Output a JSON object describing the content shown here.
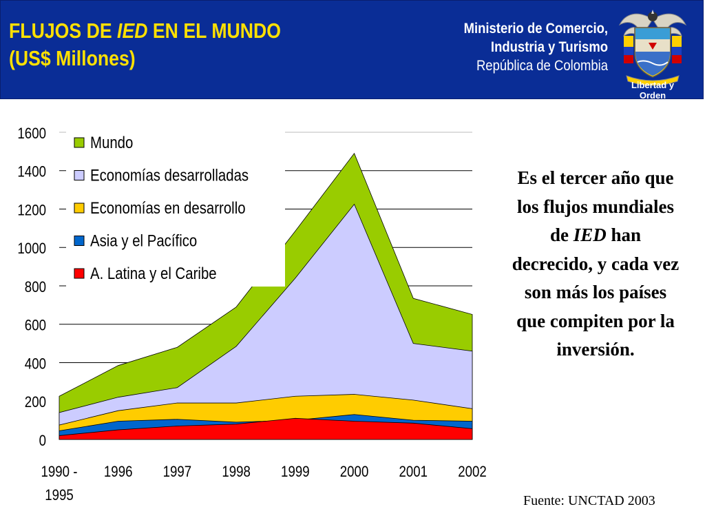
{
  "header": {
    "title_part1": "FLUJOS DE ",
    "title_italic": "IED",
    "title_part2": " EN EL MUNDO",
    "title_line2": "(US$ Millones)",
    "ministry_line1": "Ministerio de Comercio,",
    "ministry_line2": "Industria y Turismo",
    "ministry_line3": "República de Colombia",
    "logo_icon": "coat-of-arms-icon",
    "logo_motto": "Libertad y Orden",
    "background_color": "#0a2d96",
    "title_color": "#ffe000"
  },
  "side_text": {
    "part1": "Es el tercer año que los flujos mundiales de ",
    "italic": "IED",
    "part2": " han decrecido, y cada vez son más los países que compiten por la inversión."
  },
  "source": "Fuente: UNCTAD 2003",
  "chart_data": {
    "type": "area",
    "stacked": false,
    "categories": [
      "1990 - 1995",
      "1996",
      "1997",
      "1998",
      "1999",
      "2000",
      "2001",
      "2002"
    ],
    "series": [
      {
        "name": "Mundo",
        "color": "#99cc00",
        "values": [
          225,
          385,
          480,
          690,
          1085,
          1490,
          735,
          651
        ]
      },
      {
        "name": "Economías desarrolladas",
        "color": "#ccccff",
        "values": [
          140,
          220,
          270,
          485,
          840,
          1225,
          500,
          460
        ]
      },
      {
        "name": "Economías en desarrollo",
        "color": "#ffcc00",
        "values": [
          75,
          150,
          190,
          190,
          225,
          235,
          205,
          160
        ]
      },
      {
        "name": "Asia y el Pacífico",
        "color": "#0066cc",
        "values": [
          45,
          95,
          105,
          90,
          100,
          130,
          100,
          95
        ]
      },
      {
        "name": "A. Latina y el Caribe",
        "color": "#ff0000",
        "values": [
          20,
          50,
          70,
          80,
          110,
          95,
          85,
          56
        ]
      }
    ],
    "ylim": [
      0,
      1600
    ],
    "yticks": [
      0,
      200,
      400,
      600,
      800,
      1000,
      1200,
      1400,
      1600
    ],
    "grid": true,
    "legend_position": "top-left"
  }
}
